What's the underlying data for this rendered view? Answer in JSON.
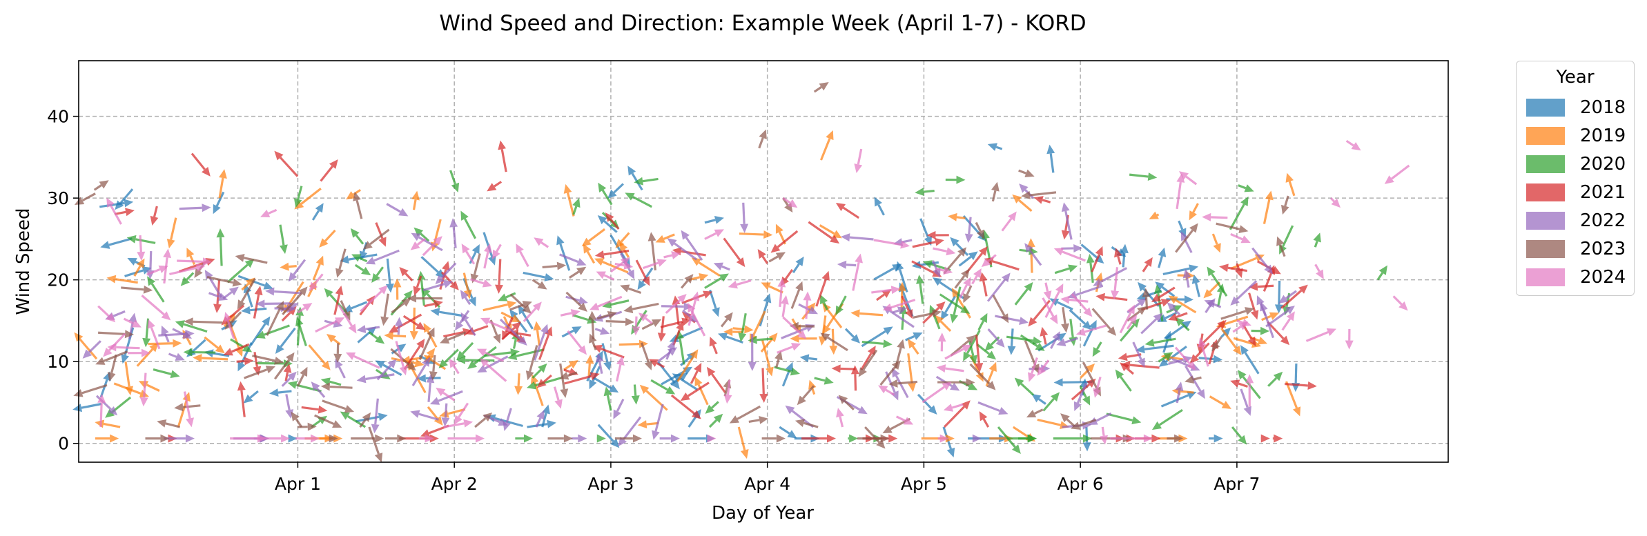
{
  "chart_data": {
    "type": "quiver",
    "title": "Wind Speed and Direction: Example Week (April 1-7) - KORD",
    "xlabel": "Day of Year",
    "ylabel": "Wind Speed",
    "x_ticks": [
      "Apr 1",
      "Apr 2",
      "Apr 3",
      "Apr 4",
      "Apr 5",
      "Apr 6",
      "Apr 7"
    ],
    "x_tick_positions_days": [
      1,
      2,
      3,
      4,
      5,
      6,
      7
    ],
    "xlim_days": [
      -0.4,
      8.35
    ],
    "y_ticks": [
      0,
      10,
      20,
      30,
      40
    ],
    "ylim": [
      -2.3,
      46.8
    ],
    "grid": true,
    "legend": {
      "title": "Year",
      "placement": "outside-top-right"
    },
    "series": [
      {
        "name": "2018",
        "color": "#1f77b4",
        "samples": [
          [
            0.7,
            12,
            0.4,
            0.6
          ],
          [
            1.6,
            11,
            0.3,
            0.2
          ],
          [
            2.1,
            22,
            0.2,
            0.4
          ],
          [
            2.5,
            14,
            -0.3,
            0.5
          ],
          [
            3.2,
            31,
            -0.3,
            0.5
          ],
          [
            3.6,
            27,
            0.4,
            0.1
          ],
          [
            4.1,
            7,
            0.2,
            0.5
          ],
          [
            4.5,
            14,
            0.3,
            -0.3
          ],
          [
            5.2,
            18,
            -0.3,
            -0.5
          ],
          [
            5.5,
            36,
            -0.3,
            0.1
          ],
          [
            6.2,
            24,
            0.3,
            -0.2
          ],
          [
            6.6,
            18,
            -0.4,
            0.3
          ],
          [
            6.9,
            13,
            0.2,
            0.2
          ]
        ]
      },
      {
        "name": "2019",
        "color": "#ff7f0e",
        "samples": [
          [
            -0.1,
            10,
            0.1,
            -0.7
          ],
          [
            0.5,
            30,
            0.1,
            0.6
          ],
          [
            1.1,
            20,
            0.2,
            0.5
          ],
          [
            1.4,
            31,
            -0.3,
            -0.2
          ],
          [
            2.3,
            16,
            0.4,
            -0.2
          ],
          [
            2.7,
            9,
            0.3,
            0.2
          ],
          [
            3.5,
            20,
            0.4,
            0.1
          ],
          [
            4.3,
            6,
            -0.1,
            0.3
          ],
          [
            4.9,
            11,
            0.1,
            -0.8
          ],
          [
            5.4,
            7,
            0.2,
            0.5
          ],
          [
            6.0,
            8,
            0.3,
            0.3
          ],
          [
            6.5,
            28,
            -0.2,
            -0.1
          ]
        ]
      },
      {
        "name": "2020",
        "color": "#2ca02c",
        "samples": [
          [
            1.0,
            12,
            0.05,
            0.8
          ],
          [
            1.5,
            9,
            0.3,
            -0.2
          ],
          [
            2.5,
            8,
            0.3,
            0.3
          ],
          [
            3.0,
            4,
            -0.1,
            0.5
          ],
          [
            3.6,
            19,
            0.5,
            0.3
          ],
          [
            4.3,
            8,
            0.4,
            -0.1
          ],
          [
            5.1,
            14,
            -0.2,
            0.5
          ],
          [
            6.0,
            7,
            0.2,
            -0.4
          ],
          [
            6.5,
            10,
            0.3,
            0.2
          ],
          [
            7.2,
            7,
            0.3,
            0.3
          ],
          [
            7.5,
            24,
            0.1,
            0.3
          ],
          [
            7.9,
            20,
            0.2,
            0.3
          ]
        ]
      },
      {
        "name": "2021",
        "color": "#d62728",
        "samples": [
          [
            0.1,
            29,
            -0.1,
            -0.4
          ],
          [
            0.9,
            15,
            0.3,
            0.3
          ],
          [
            1.5,
            27,
            0.2,
            -0.5
          ],
          [
            2.3,
            32,
            -0.3,
            -0.2
          ],
          [
            2.7,
            9,
            0.3,
            -0.1
          ],
          [
            3.4,
            12,
            0.2,
            0.5
          ],
          [
            4.0,
            22,
            -0.2,
            0.3
          ],
          [
            4.6,
            9,
            0.3,
            0.5
          ],
          [
            5.4,
            18,
            -0.1,
            0.5
          ],
          [
            6.4,
            21,
            0.2,
            0.3
          ],
          [
            7.0,
            22,
            0.1,
            -0.3
          ]
        ]
      },
      {
        "name": "2022",
        "color": "#9467bd",
        "samples": [
          [
            0.2,
            14,
            0.4,
            -0.2
          ],
          [
            0.9,
            7,
            0.3,
            0.3
          ],
          [
            1.3,
            8,
            -0.2,
            0.4
          ],
          [
            2.1,
            17,
            -0.2,
            0.3
          ],
          [
            2.9,
            14,
            0.3,
            -0.1
          ],
          [
            3.3,
            10,
            0.4,
            0.3
          ],
          [
            4.2,
            17,
            0.4,
            -0.2
          ],
          [
            4.8,
            16,
            0.3,
            0.1
          ],
          [
            5.7,
            30,
            -0.3,
            0.3
          ],
          [
            6.3,
            16,
            0.4,
            0.3
          ],
          [
            6.8,
            16,
            0.2,
            0.3
          ]
        ]
      },
      {
        "name": "2023",
        "color": "#8c564b",
        "samples": [
          [
            -0.3,
            31,
            0.3,
            0.2
          ],
          [
            0.4,
            22,
            -0.2,
            -0.3
          ],
          [
            1.0,
            7,
            0.2,
            0.4
          ],
          [
            1.6,
            16,
            0.4,
            0.3
          ],
          [
            2.5,
            20,
            0.3,
            -0.2
          ],
          [
            3.2,
            14,
            0.4,
            0.2
          ],
          [
            4.1,
            30,
            0.2,
            -0.3
          ],
          [
            4.3,
            43,
            0.3,
            0.2
          ],
          [
            5.2,
            19,
            0.3,
            0.4
          ],
          [
            6.3,
            15,
            0.4,
            0.3
          ],
          [
            6.9,
            13,
            -0.2,
            -0.3
          ]
        ]
      },
      {
        "name": "2024",
        "color": "#e377c2",
        "samples": [
          [
            1.0,
            16,
            0.3,
            0.2
          ],
          [
            1.8,
            23,
            0.4,
            0.4
          ],
          [
            2.6,
            24,
            -0.3,
            0.2
          ],
          [
            3.0,
            21,
            0.4,
            0.3
          ],
          [
            3.6,
            25,
            0.4,
            0.2
          ],
          [
            4.1,
            30,
            0.3,
            -0.2
          ],
          [
            4.6,
            36,
            -0.1,
            -0.5
          ],
          [
            5.5,
            26,
            0.3,
            0.4
          ],
          [
            6.3,
            14,
            0.2,
            0.3
          ],
          [
            7.0,
            15,
            0.3,
            -0.1
          ],
          [
            7.6,
            30,
            0.2,
            -0.2
          ],
          [
            8.0,
            18,
            0.3,
            -0.3
          ],
          [
            7.7,
            37,
            0.3,
            -0.2
          ]
        ]
      }
    ]
  }
}
